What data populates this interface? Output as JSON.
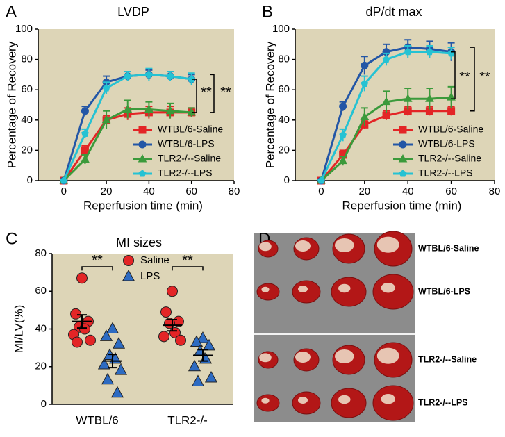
{
  "chart_data": [
    {
      "panel": "A",
      "type": "line",
      "title": "LVDP",
      "x_label": "Reperfusion time (min)",
      "y_label": "Percentage of Recovery",
      "x": [
        0,
        10,
        20,
        30,
        40,
        50,
        60
      ],
      "xlim": [
        -12,
        80
      ],
      "xticks": [
        0,
        20,
        40,
        60,
        80
      ],
      "ylim": [
        0,
        100
      ],
      "yticks": [
        0,
        20,
        40,
        60,
        80,
        100
      ],
      "series": [
        {
          "name": "WTBL/6-Saline",
          "color": "#e32526",
          "marker": "square",
          "values": [
            0,
            20,
            40,
            44,
            45,
            45,
            45
          ],
          "errors": [
            0,
            3,
            3,
            4,
            4,
            4,
            3
          ]
        },
        {
          "name": "WTBL/6-LPS",
          "color": "#2356a6",
          "marker": "circle",
          "values": [
            0,
            46,
            65,
            69,
            70,
            69,
            67
          ],
          "errors": [
            0,
            3,
            4,
            3,
            3,
            3,
            3
          ]
        },
        {
          "name": "TLR2-/--Saline",
          "color": "#3b9a3b",
          "marker": "triangle",
          "values": [
            0,
            14,
            40,
            47,
            47,
            46,
            45
          ],
          "errors": [
            0,
            3,
            6,
            6,
            5,
            5,
            3
          ]
        },
        {
          "name": "TLR2-/--LPS",
          "color": "#25c2d3",
          "marker": "pentagon",
          "values": [
            0,
            31,
            61,
            69,
            70,
            69,
            67
          ],
          "errors": [
            0,
            3,
            4,
            3,
            4,
            3,
            4
          ]
        }
      ],
      "annotations": [
        "**",
        "**"
      ]
    },
    {
      "panel": "B",
      "type": "line",
      "title": "dP/dt max",
      "x_label": "Reperfusion time (min)",
      "y_label": "Percentage of Recovery",
      "x": [
        0,
        10,
        20,
        30,
        40,
        50,
        60
      ],
      "xlim": [
        -12,
        80
      ],
      "xticks": [
        0,
        20,
        40,
        60,
        80
      ],
      "ylim": [
        0,
        100
      ],
      "yticks": [
        0,
        20,
        40,
        60,
        80,
        100
      ],
      "series": [
        {
          "name": "WTBL/6-Saline",
          "color": "#e32526",
          "marker": "square",
          "values": [
            0,
            17,
            37,
            43,
            46,
            46,
            46
          ],
          "errors": [
            0,
            3,
            3,
            3,
            3,
            3,
            3
          ]
        },
        {
          "name": "WTBL/6-LPS",
          "color": "#2356a6",
          "marker": "circle",
          "values": [
            0,
            49,
            76,
            85,
            88,
            87,
            85
          ],
          "errors": [
            0,
            3,
            6,
            5,
            5,
            5,
            6
          ]
        },
        {
          "name": "TLR2-/--Saline",
          "color": "#3b9a3b",
          "marker": "triangle",
          "values": [
            0,
            13,
            42,
            52,
            54,
            54,
            55
          ],
          "errors": [
            0,
            3,
            6,
            7,
            7,
            7,
            7
          ]
        },
        {
          "name": "TLR2-/--LPS",
          "color": "#25c2d3",
          "marker": "pentagon",
          "values": [
            0,
            30,
            64,
            80,
            85,
            85,
            84
          ],
          "errors": [
            0,
            4,
            5,
            4,
            4,
            4,
            4
          ]
        }
      ],
      "annotations": [
        "**",
        "**"
      ]
    },
    {
      "panel": "C",
      "type": "dot",
      "title": "MI sizes",
      "y_label": "MI/LV(%)",
      "categories": [
        "WTBL/6",
        "TLR2-/-"
      ],
      "ylim": [
        0,
        80
      ],
      "yticks": [
        0,
        20,
        40,
        60,
        80
      ],
      "series": [
        {
          "name": "Saline",
          "color": "#e32526",
          "marker": "circle",
          "values": [
            [
              67,
              48,
              44,
              41,
              40,
              37,
              34,
              33
            ],
            [
              60,
              49,
              44,
              43,
              38,
              36,
              34
            ]
          ],
          "means": [
            44,
            42
          ],
          "sems": [
            3.5,
            3
          ]
        },
        {
          "name": "LPS",
          "color": "#2d6bc2",
          "marker": "triangle",
          "values": [
            [
              40,
              36,
              32,
              26,
              24,
              21,
              18,
              13,
              6
            ],
            [
              35,
              33,
              31,
              28,
              24,
              20,
              14,
              12
            ]
          ],
          "means": [
            23,
            26
          ],
          "sems": [
            3.5,
            3
          ]
        }
      ],
      "annotations": [
        "**",
        "**"
      ]
    }
  ],
  "image_panel": {
    "panel": "D",
    "labels": [
      "WTBL/6-Saline",
      "WTBL/6-LPS",
      "TLR2-/--Saline",
      "TLR2-/--LPS"
    ]
  }
}
